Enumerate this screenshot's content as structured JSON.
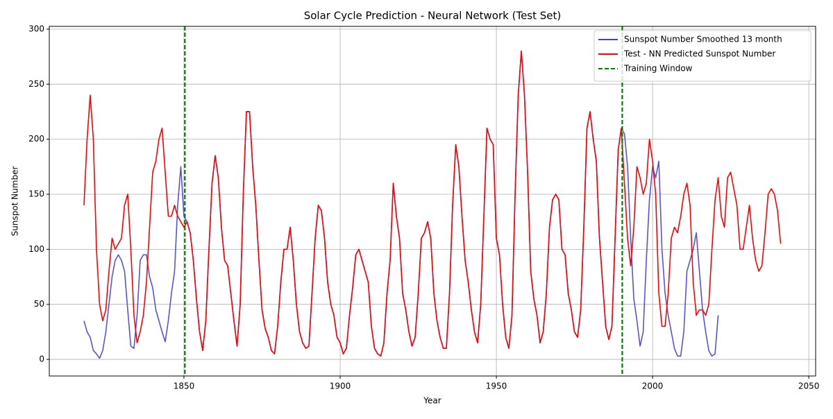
{
  "chart_data": {
    "type": "line",
    "title": "Solar Cycle Prediction - Neural Network (Test Set)",
    "x_label": "Year",
    "y_label": "Sunspot Number",
    "x": [
      1818,
      1819,
      1820,
      1821,
      1822,
      1823,
      1824,
      1825,
      1826,
      1827,
      1828,
      1829,
      1830,
      1831,
      1832,
      1833,
      1834,
      1835,
      1836,
      1837,
      1838,
      1839,
      1840,
      1841,
      1842,
      1843,
      1844,
      1845,
      1846,
      1847,
      1848,
      1849,
      1850,
      1851,
      1852,
      1853,
      1854,
      1855,
      1856,
      1857,
      1858,
      1859,
      1860,
      1861,
      1862,
      1863,
      1864,
      1865,
      1866,
      1867,
      1868,
      1869,
      1870,
      1871,
      1872,
      1873,
      1874,
      1875,
      1876,
      1877,
      1878,
      1879,
      1880,
      1881,
      1882,
      1883,
      1884,
      1885,
      1886,
      1887,
      1888,
      1889,
      1890,
      1891,
      1892,
      1893,
      1894,
      1895,
      1896,
      1897,
      1898,
      1899,
      1900,
      1901,
      1902,
      1903,
      1904,
      1905,
      1906,
      1907,
      1908,
      1909,
      1910,
      1911,
      1912,
      1913,
      1914,
      1915,
      1916,
      1917,
      1918,
      1919,
      1920,
      1921,
      1922,
      1923,
      1924,
      1925,
      1926,
      1927,
      1928,
      1929,
      1930,
      1931,
      1932,
      1933,
      1934,
      1935,
      1936,
      1937,
      1938,
      1939,
      1940,
      1941,
      1942,
      1943,
      1944,
      1945,
      1946,
      1947,
      1948,
      1949,
      1950,
      1951,
      1952,
      1953,
      1954,
      1955,
      1956,
      1957,
      1958,
      1959,
      1960,
      1961,
      1962,
      1963,
      1964,
      1965,
      1966,
      1967,
      1968,
      1969,
      1970,
      1971,
      1972,
      1973,
      1974,
      1975,
      1976,
      1977,
      1978,
      1979,
      1980,
      1981,
      1982,
      1983,
      1984,
      1985,
      1986,
      1987,
      1988,
      1989,
      1990,
      1991,
      1992,
      1993,
      1994,
      1995,
      1996,
      1997,
      1998,
      1999,
      2000,
      2001,
      2002,
      2003,
      2004,
      2005,
      2006,
      2007,
      2008,
      2009,
      2010,
      2011,
      2012,
      2013,
      2014,
      2015,
      2016,
      2017,
      2018,
      2019,
      2020,
      2021,
      2022,
      2023,
      2024,
      2025,
      2026,
      2027,
      2028,
      2029,
      2030,
      2031,
      2032,
      2033,
      2034,
      2035,
      2036,
      2037,
      2038,
      2039,
      2040,
      2041
    ],
    "series": [
      {
        "name": "Sunspot Number Smoothed 13 month",
        "color": "#4040e8",
        "values": [
          35,
          25,
          20,
          8,
          5,
          1,
          8,
          25,
          50,
          75,
          90,
          95,
          90,
          80,
          45,
          12,
          10,
          40,
          90,
          95,
          95,
          75,
          65,
          45,
          35,
          25,
          16,
          35,
          60,
          80,
          140,
          175,
          130,
          125,
          115,
          90,
          55,
          25,
          8,
          35,
          100,
          160,
          185,
          165,
          120,
          90,
          85,
          60,
          35,
          12,
          50,
          150,
          225,
          225,
          175,
          140,
          90,
          45,
          28,
          20,
          8,
          5,
          30,
          70,
          100,
          100,
          120,
          90,
          50,
          25,
          15,
          10,
          12,
          60,
          110,
          140,
          135,
          110,
          70,
          50,
          40,
          20,
          15,
          5,
          10,
          40,
          65,
          95,
          100,
          90,
          80,
          70,
          30,
          10,
          5,
          3,
          15,
          60,
          90,
          160,
          130,
          110,
          60,
          45,
          25,
          12,
          20,
          60,
          110,
          115,
          125,
          110,
          60,
          35,
          20,
          10,
          10,
          60,
          140,
          195,
          175,
          130,
          90,
          70,
          45,
          25,
          15,
          50,
          130,
          210,
          200,
          195,
          110,
          95,
          50,
          20,
          10,
          40,
          150,
          240,
          280,
          240,
          170,
          80,
          55,
          40,
          15,
          25,
          60,
          120,
          145,
          150,
          145,
          100,
          95,
          60,
          45,
          25,
          20,
          45,
          120,
          210,
          225,
          200,
          180,
          110,
          70,
          30,
          18,
          30,
          110,
          190,
          210,
          205,
          175,
          110,
          55,
          35,
          12,
          25,
          90,
          145,
          175,
          165,
          180,
          100,
          60,
          40,
          25,
          10,
          3,
          3,
          25,
          80,
          90,
          100,
          115,
          80,
          45,
          25,
          8,
          3,
          5,
          40,
          null,
          null,
          null,
          null,
          null,
          null,
          null,
          null,
          null,
          null,
          null,
          null,
          null,
          null,
          null,
          null,
          null,
          null,
          null,
          null
        ]
      },
      {
        "name": "Test - NN Predicted Sunspot Number",
        "color": "#ff0000",
        "values": [
          140,
          200,
          240,
          200,
          100,
          50,
          35,
          45,
          80,
          110,
          100,
          105,
          110,
          140,
          150,
          100,
          40,
          15,
          25,
          40,
          70,
          120,
          170,
          180,
          200,
          210,
          170,
          130,
          130,
          140,
          130,
          125,
          120,
          125,
          115,
          90,
          55,
          25,
          8,
          35,
          100,
          160,
          185,
          165,
          120,
          90,
          85,
          60,
          35,
          12,
          50,
          150,
          225,
          225,
          175,
          140,
          90,
          45,
          28,
          20,
          8,
          5,
          30,
          70,
          100,
          100,
          120,
          90,
          50,
          25,
          15,
          10,
          12,
          60,
          110,
          140,
          135,
          110,
          70,
          50,
          40,
          20,
          15,
          5,
          10,
          40,
          65,
          95,
          100,
          90,
          80,
          70,
          30,
          10,
          5,
          3,
          15,
          60,
          90,
          160,
          130,
          110,
          60,
          45,
          25,
          12,
          20,
          60,
          110,
          115,
          125,
          110,
          60,
          35,
          20,
          10,
          10,
          60,
          140,
          195,
          175,
          130,
          90,
          70,
          45,
          25,
          15,
          50,
          130,
          210,
          200,
          195,
          110,
          95,
          50,
          20,
          10,
          40,
          150,
          240,
          280,
          240,
          170,
          80,
          55,
          40,
          15,
          25,
          60,
          120,
          145,
          150,
          145,
          100,
          95,
          60,
          45,
          25,
          20,
          45,
          120,
          210,
          225,
          200,
          180,
          110,
          70,
          30,
          18,
          30,
          110,
          190,
          210,
          160,
          110,
          85,
          120,
          175,
          165,
          150,
          160,
          200,
          180,
          150,
          60,
          30,
          30,
          60,
          110,
          120,
          115,
          130,
          150,
          160,
          140,
          70,
          40,
          45,
          45,
          40,
          50,
          100,
          145,
          165,
          130,
          120,
          165,
          170,
          155,
          140,
          100,
          100,
          120,
          140,
          110,
          90,
          80,
          85,
          115,
          150,
          155,
          150,
          135,
          105
        ]
      }
    ],
    "vlines": {
      "name": "Training Window",
      "color": "#008000",
      "x": [
        1850.3,
        1990.3
      ]
    },
    "xlim": [
      1806.9,
      2052.2
    ],
    "xticks": [
      1850,
      1900,
      1950,
      2000,
      2050
    ],
    "ylim": [
      -15.1,
      302.5
    ],
    "yticks": [
      0,
      50,
      100,
      150,
      200,
      250,
      300
    ],
    "grid": true,
    "legend": "upper right"
  }
}
